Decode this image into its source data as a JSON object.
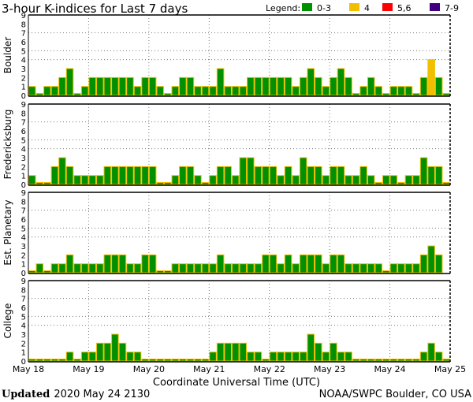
{
  "chart_data": {
    "type": "bar",
    "title": "3-hour K-indices for Last 7 days",
    "xlabel": "Coordinate Universal Time (UTC)",
    "x_ticks": [
      "May 18",
      "May 19",
      "May 20",
      "May 21",
      "May 22",
      "May 23",
      "May 24",
      "May 25"
    ],
    "y_ticks": [
      "0",
      "1",
      "2",
      "3",
      "4",
      "5",
      "6",
      "7",
      "8",
      "9"
    ],
    "ylim": [
      0,
      9
    ],
    "interval_hours": 3,
    "gridlines_y": [
      4,
      5,
      7
    ],
    "grid": true,
    "legend": {
      "title": "Legend:",
      "placement": "top-right",
      "items": [
        {
          "label": "0-3",
          "color": "#009000"
        },
        {
          "label": "4",
          "color": "#f0c000"
        },
        {
          "label": "5,6",
          "color": "#ff0000"
        },
        {
          "label": "7-9",
          "color": "#400080"
        }
      ]
    },
    "bar_edge_color": "#f0c000",
    "series": [
      {
        "name": "Boulder",
        "values": [
          1,
          0,
          1,
          1,
          2,
          3,
          0,
          1,
          2,
          2,
          2,
          2,
          2,
          2,
          1,
          2,
          2,
          1,
          0,
          1,
          2,
          2,
          1,
          1,
          1,
          3,
          1,
          1,
          1,
          2,
          2,
          2,
          2,
          2,
          2,
          1,
          2,
          3,
          2,
          1,
          2,
          3,
          2,
          0,
          1,
          2,
          1,
          0,
          1,
          1,
          1,
          0,
          2,
          4,
          2,
          0
        ]
      },
      {
        "name": "Fredericksburg",
        "values": [
          1,
          0,
          0,
          2,
          3,
          2,
          1,
          1,
          1,
          1,
          2,
          2,
          2,
          2,
          2,
          2,
          2,
          0,
          0,
          1,
          2,
          2,
          1,
          0,
          1,
          2,
          2,
          1,
          3,
          3,
          2,
          2,
          2,
          1,
          2,
          1,
          3,
          2,
          2,
          1,
          2,
          2,
          1,
          1,
          2,
          1,
          0,
          1,
          1,
          0,
          1,
          1,
          3,
          2,
          2,
          0
        ]
      },
      {
        "name": "Est. Planetary",
        "values": [
          0,
          1,
          0,
          1,
          1,
          2,
          1,
          1,
          1,
          1,
          2,
          2,
          2,
          1,
          1,
          2,
          2,
          0,
          0,
          1,
          1,
          1,
          1,
          1,
          1,
          2,
          1,
          1,
          1,
          1,
          1,
          2,
          2,
          1,
          2,
          1,
          2,
          2,
          2,
          1,
          2,
          2,
          1,
          1,
          1,
          1,
          1,
          0,
          1,
          1,
          1,
          1,
          2,
          3,
          2,
          null
        ]
      },
      {
        "name": "College",
        "values": [
          0,
          0,
          0,
          0,
          0,
          1,
          0,
          1,
          1,
          2,
          2,
          3,
          2,
          1,
          1,
          0,
          0,
          0,
          0,
          0,
          0,
          0,
          0,
          0,
          1,
          2,
          2,
          2,
          2,
          1,
          1,
          0,
          1,
          1,
          1,
          1,
          1,
          3,
          2,
          1,
          2,
          1,
          1,
          0,
          0,
          0,
          0,
          0,
          0,
          0,
          0,
          0,
          1,
          2,
          1,
          0
        ]
      }
    ]
  },
  "footer": {
    "updated_label": "Updated",
    "updated_value": "2020 May 24 2130",
    "credit": "NOAA/SWPC Boulder, CO USA"
  }
}
